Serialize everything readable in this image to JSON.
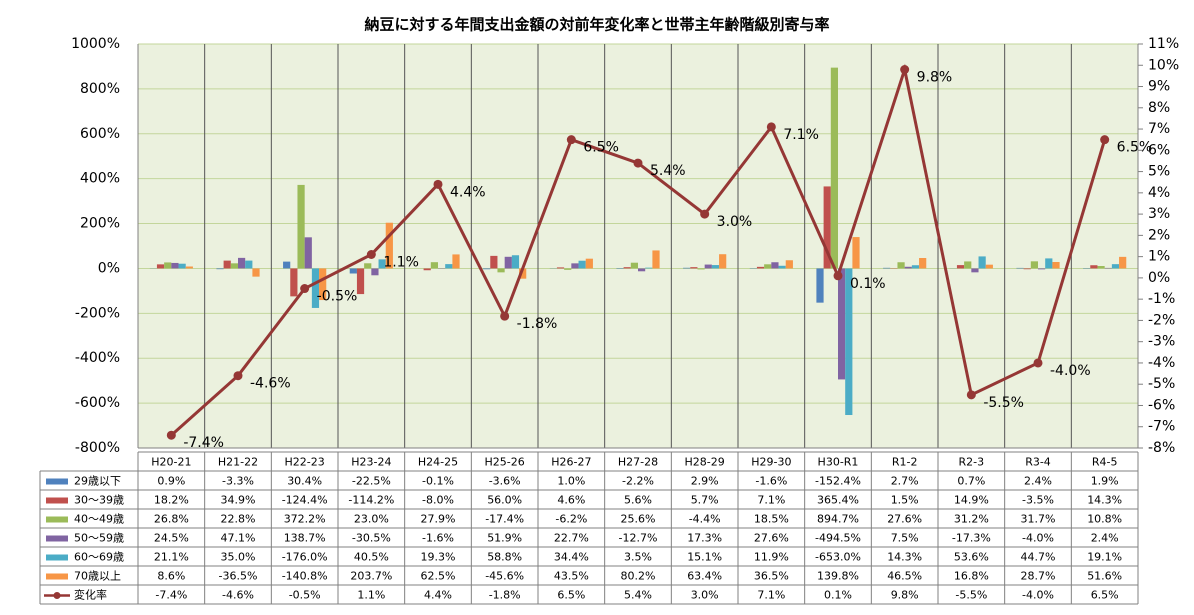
{
  "chart_data": {
    "type": "bar",
    "title": "納豆に対する年間支出金額の対前年変化率と世帯主年齢階級別寄与率",
    "categories": [
      "H20-21",
      "H21-22",
      "H22-23",
      "H23-24",
      "H24-25",
      "H25-26",
      "H26-27",
      "H27-28",
      "H28-29",
      "H29-30",
      "H30-R1",
      "R1-2",
      "R2-3",
      "R3-4",
      "R4-5"
    ],
    "series": [
      {
        "name": "29歳以下",
        "color": "#4f81bd",
        "values": [
          0.9,
          -3.3,
          30.4,
          -22.5,
          -0.1,
          -3.6,
          1.0,
          -2.2,
          2.9,
          -1.6,
          -152.4,
          2.7,
          0.7,
          2.4,
          1.9
        ],
        "value_labels": [
          "0.9%",
          "-3.3%",
          "30.4%",
          "-22.5%",
          "-0.1%",
          "-3.6%",
          "1.0%",
          "-2.2%",
          "2.9%",
          "-1.6%",
          "-152.4%",
          "2.7%",
          "0.7%",
          "2.4%",
          "1.9%"
        ]
      },
      {
        "name": "30～39歳",
        "color": "#c0504d",
        "values": [
          18.2,
          34.9,
          -124.4,
          -114.2,
          -8.0,
          56.0,
          4.6,
          5.6,
          5.7,
          7.1,
          365.4,
          1.5,
          14.9,
          -3.5,
          14.3
        ],
        "value_labels": [
          "18.2%",
          "34.9%",
          "-124.4%",
          "-114.2%",
          "-8.0%",
          "56.0%",
          "4.6%",
          "5.6%",
          "5.7%",
          "7.1%",
          "365.4%",
          "1.5%",
          "14.9%",
          "-3.5%",
          "14.3%"
        ]
      },
      {
        "name": "40～49歳",
        "color": "#9bbb59",
        "values": [
          26.8,
          22.8,
          372.2,
          23.0,
          27.9,
          -17.4,
          -6.2,
          25.6,
          -4.4,
          18.5,
          894.7,
          27.6,
          31.2,
          31.7,
          10.8
        ],
        "value_labels": [
          "26.8%",
          "22.8%",
          "372.2%",
          "23.0%",
          "27.9%",
          "-17.4%",
          "-6.2%",
          "25.6%",
          "-4.4%",
          "18.5%",
          "894.7%",
          "27.6%",
          "31.2%",
          "31.7%",
          "10.8%"
        ]
      },
      {
        "name": "50～59歳",
        "color": "#8064a2",
        "values": [
          24.5,
          47.1,
          138.7,
          -30.5,
          -1.6,
          51.9,
          22.7,
          -12.7,
          17.3,
          27.6,
          -494.5,
          7.5,
          -17.3,
          -4.0,
          2.4
        ],
        "value_labels": [
          "24.5%",
          "47.1%",
          "138.7%",
          "-30.5%",
          "-1.6%",
          "51.9%",
          "22.7%",
          "-12.7%",
          "17.3%",
          "27.6%",
          "-494.5%",
          "7.5%",
          "-17.3%",
          "-4.0%",
          "2.4%"
        ]
      },
      {
        "name": "60～69歳",
        "color": "#4bacc6",
        "values": [
          21.1,
          35.0,
          -176.0,
          40.5,
          19.3,
          58.8,
          34.4,
          3.5,
          15.1,
          11.9,
          -653.0,
          14.3,
          53.6,
          44.7,
          19.1
        ],
        "value_labels": [
          "21.1%",
          "35.0%",
          "-176.0%",
          "40.5%",
          "19.3%",
          "58.8%",
          "34.4%",
          "3.5%",
          "15.1%",
          "11.9%",
          "-653.0%",
          "14.3%",
          "53.6%",
          "44.7%",
          "19.1%"
        ]
      },
      {
        "name": "70歳以上",
        "color": "#f79646",
        "values": [
          8.6,
          -36.5,
          -140.8,
          203.7,
          62.5,
          -45.6,
          43.5,
          80.2,
          63.4,
          36.5,
          139.8,
          46.5,
          16.8,
          28.7,
          51.6
        ],
        "value_labels": [
          "8.6%",
          "-36.5%",
          "-140.8%",
          "203.7%",
          "62.5%",
          "-45.6%",
          "43.5%",
          "80.2%",
          "63.4%",
          "36.5%",
          "139.8%",
          "46.5%",
          "16.8%",
          "28.7%",
          "51.6%"
        ]
      },
      {
        "name": "変化率",
        "color": "#953735",
        "type": "line",
        "axis": "y2",
        "values": [
          -7.4,
          -4.6,
          -0.5,
          1.1,
          4.4,
          -1.8,
          6.5,
          5.4,
          3.0,
          7.1,
          0.1,
          9.8,
          -5.5,
          -4.0,
          6.5
        ],
        "value_labels": [
          "-7.4%",
          "-4.6%",
          "-0.5%",
          "1.1%",
          "4.4%",
          "-1.8%",
          "6.5%",
          "5.4%",
          "3.0%",
          "7.1%",
          "0.1%",
          "9.8%",
          "-5.5%",
          "-4.0%",
          "6.5%"
        ]
      }
    ],
    "ylim": [
      -800,
      1000
    ],
    "yticks": [
      {
        "value": 1000,
        "label": "1000%"
      },
      {
        "value": 800,
        "label": "800%"
      },
      {
        "value": 600,
        "label": "600%"
      },
      {
        "value": 400,
        "label": "400%"
      },
      {
        "value": 200,
        "label": "200%"
      },
      {
        "value": 0,
        "label": "0%"
      },
      {
        "value": -200,
        "label": "-200%"
      },
      {
        "value": -400,
        "label": "-400%"
      },
      {
        "value": -600,
        "label": "-600%"
      },
      {
        "value": -800,
        "label": "-800%"
      }
    ],
    "y2lim": [
      -8,
      11
    ],
    "y2ticks": [
      {
        "value": 11,
        "label": "11%"
      },
      {
        "value": 10,
        "label": "10%"
      },
      {
        "value": 9,
        "label": "9%"
      },
      {
        "value": 8,
        "label": "8%"
      },
      {
        "value": 7,
        "label": "7%"
      },
      {
        "value": 6,
        "label": "6%"
      },
      {
        "value": 5,
        "label": "5%"
      },
      {
        "value": 4,
        "label": "4%"
      },
      {
        "value": 3,
        "label": "3%"
      },
      {
        "value": 2,
        "label": "2%"
      },
      {
        "value": 1,
        "label": "1%"
      },
      {
        "value": 0,
        "label": "0%"
      },
      {
        "value": -1,
        "label": "-1%"
      },
      {
        "value": -2,
        "label": "-2%"
      },
      {
        "value": -3,
        "label": "-3%"
      },
      {
        "value": -4,
        "label": "-4%"
      },
      {
        "value": -5,
        "label": "-5%"
      },
      {
        "value": -6,
        "label": "-6%"
      },
      {
        "value": -7,
        "label": "-7%"
      },
      {
        "value": -8,
        "label": "-8%"
      }
    ],
    "grid": true,
    "data_table": true
  }
}
